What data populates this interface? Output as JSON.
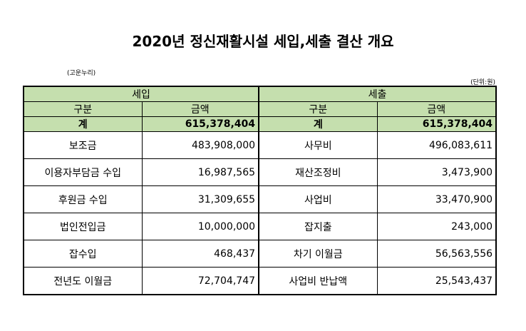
{
  "title": "2020년 정신재활시설 세입,세출 결산 개요",
  "note_left": "(고운누리)",
  "note_right": "(단위:원)",
  "headers": {
    "income": "세입",
    "expense": "세출",
    "category": "구분",
    "amount": "금액"
  },
  "total": {
    "income_label": "계",
    "income_amount": "615,378,404",
    "expense_label": "계",
    "expense_amount": "615,378,404"
  },
  "rows": [
    {
      "income_label": "보조금",
      "income_amount": "483,908,000",
      "expense_label": "사무비",
      "expense_amount": "496,083,611"
    },
    {
      "income_label": "이용자부담금 수입",
      "income_amount": "16,987,565",
      "expense_label": "재산조정비",
      "expense_amount": "3,473,900"
    },
    {
      "income_label": "후원금 수입",
      "income_amount": "31,309,655",
      "expense_label": "사업비",
      "expense_amount": "33,470,900"
    },
    {
      "income_label": "법인전입금",
      "income_amount": "10,000,000",
      "expense_label": "잡지출",
      "expense_amount": "243,000"
    },
    {
      "income_label": "잡수입",
      "income_amount": "468,437",
      "expense_label": "차기 이월금",
      "expense_amount": "56,563,556"
    },
    {
      "income_label": "전년도 이월금",
      "income_amount": "72,704,747",
      "expense_label": "사업비 반납액",
      "expense_amount": "25,543,437"
    }
  ]
}
